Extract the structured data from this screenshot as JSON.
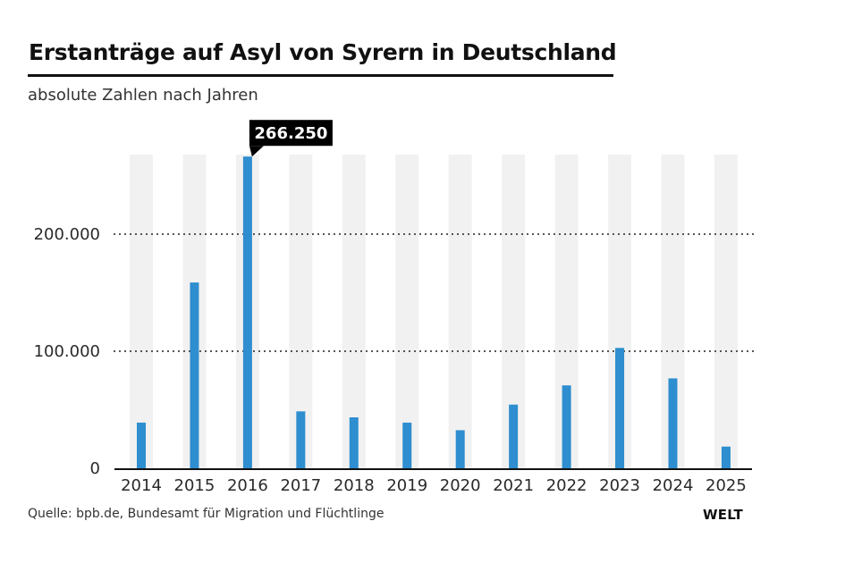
{
  "header": {
    "title": "Erstanträge auf Asyl von Syrern in Deutschland",
    "subtitle": "absolute Zahlen nach Jahren"
  },
  "footer": {
    "source": "Quelle: bpb.de, Bundesamt für Migration und Flüchtlinge",
    "logo": "WELT"
  },
  "colors": {
    "bar": "#2e8ecf",
    "band": "#f1f1f1",
    "grid": "#222222",
    "axis": "#111111",
    "label_bg": "#000000",
    "label_text": "#ffffff"
  },
  "chart_data": {
    "type": "bar",
    "title": "Erstanträge auf Asyl von Syrern in Deutschland",
    "subtitle": "absolute Zahlen nach Jahren",
    "xlabel": "",
    "ylabel": "",
    "categories": [
      "2014",
      "2015",
      "2016",
      "2017",
      "2018",
      "2019",
      "2020",
      "2021",
      "2022",
      "2023",
      "2024",
      "2025"
    ],
    "values": [
      39000,
      158700,
      266250,
      48600,
      43500,
      39000,
      32500,
      54400,
      70800,
      102800,
      76800,
      18500
    ],
    "ylim": [
      0,
      270000
    ],
    "yticks": [
      0,
      100000,
      200000
    ],
    "ytick_labels": [
      "0",
      "100.000",
      "200.000"
    ],
    "grid": "dotted horizontal at 100.000 and 200.000",
    "annotations": [
      {
        "category": "2016",
        "text": "266.250"
      }
    ],
    "legend": "none"
  }
}
